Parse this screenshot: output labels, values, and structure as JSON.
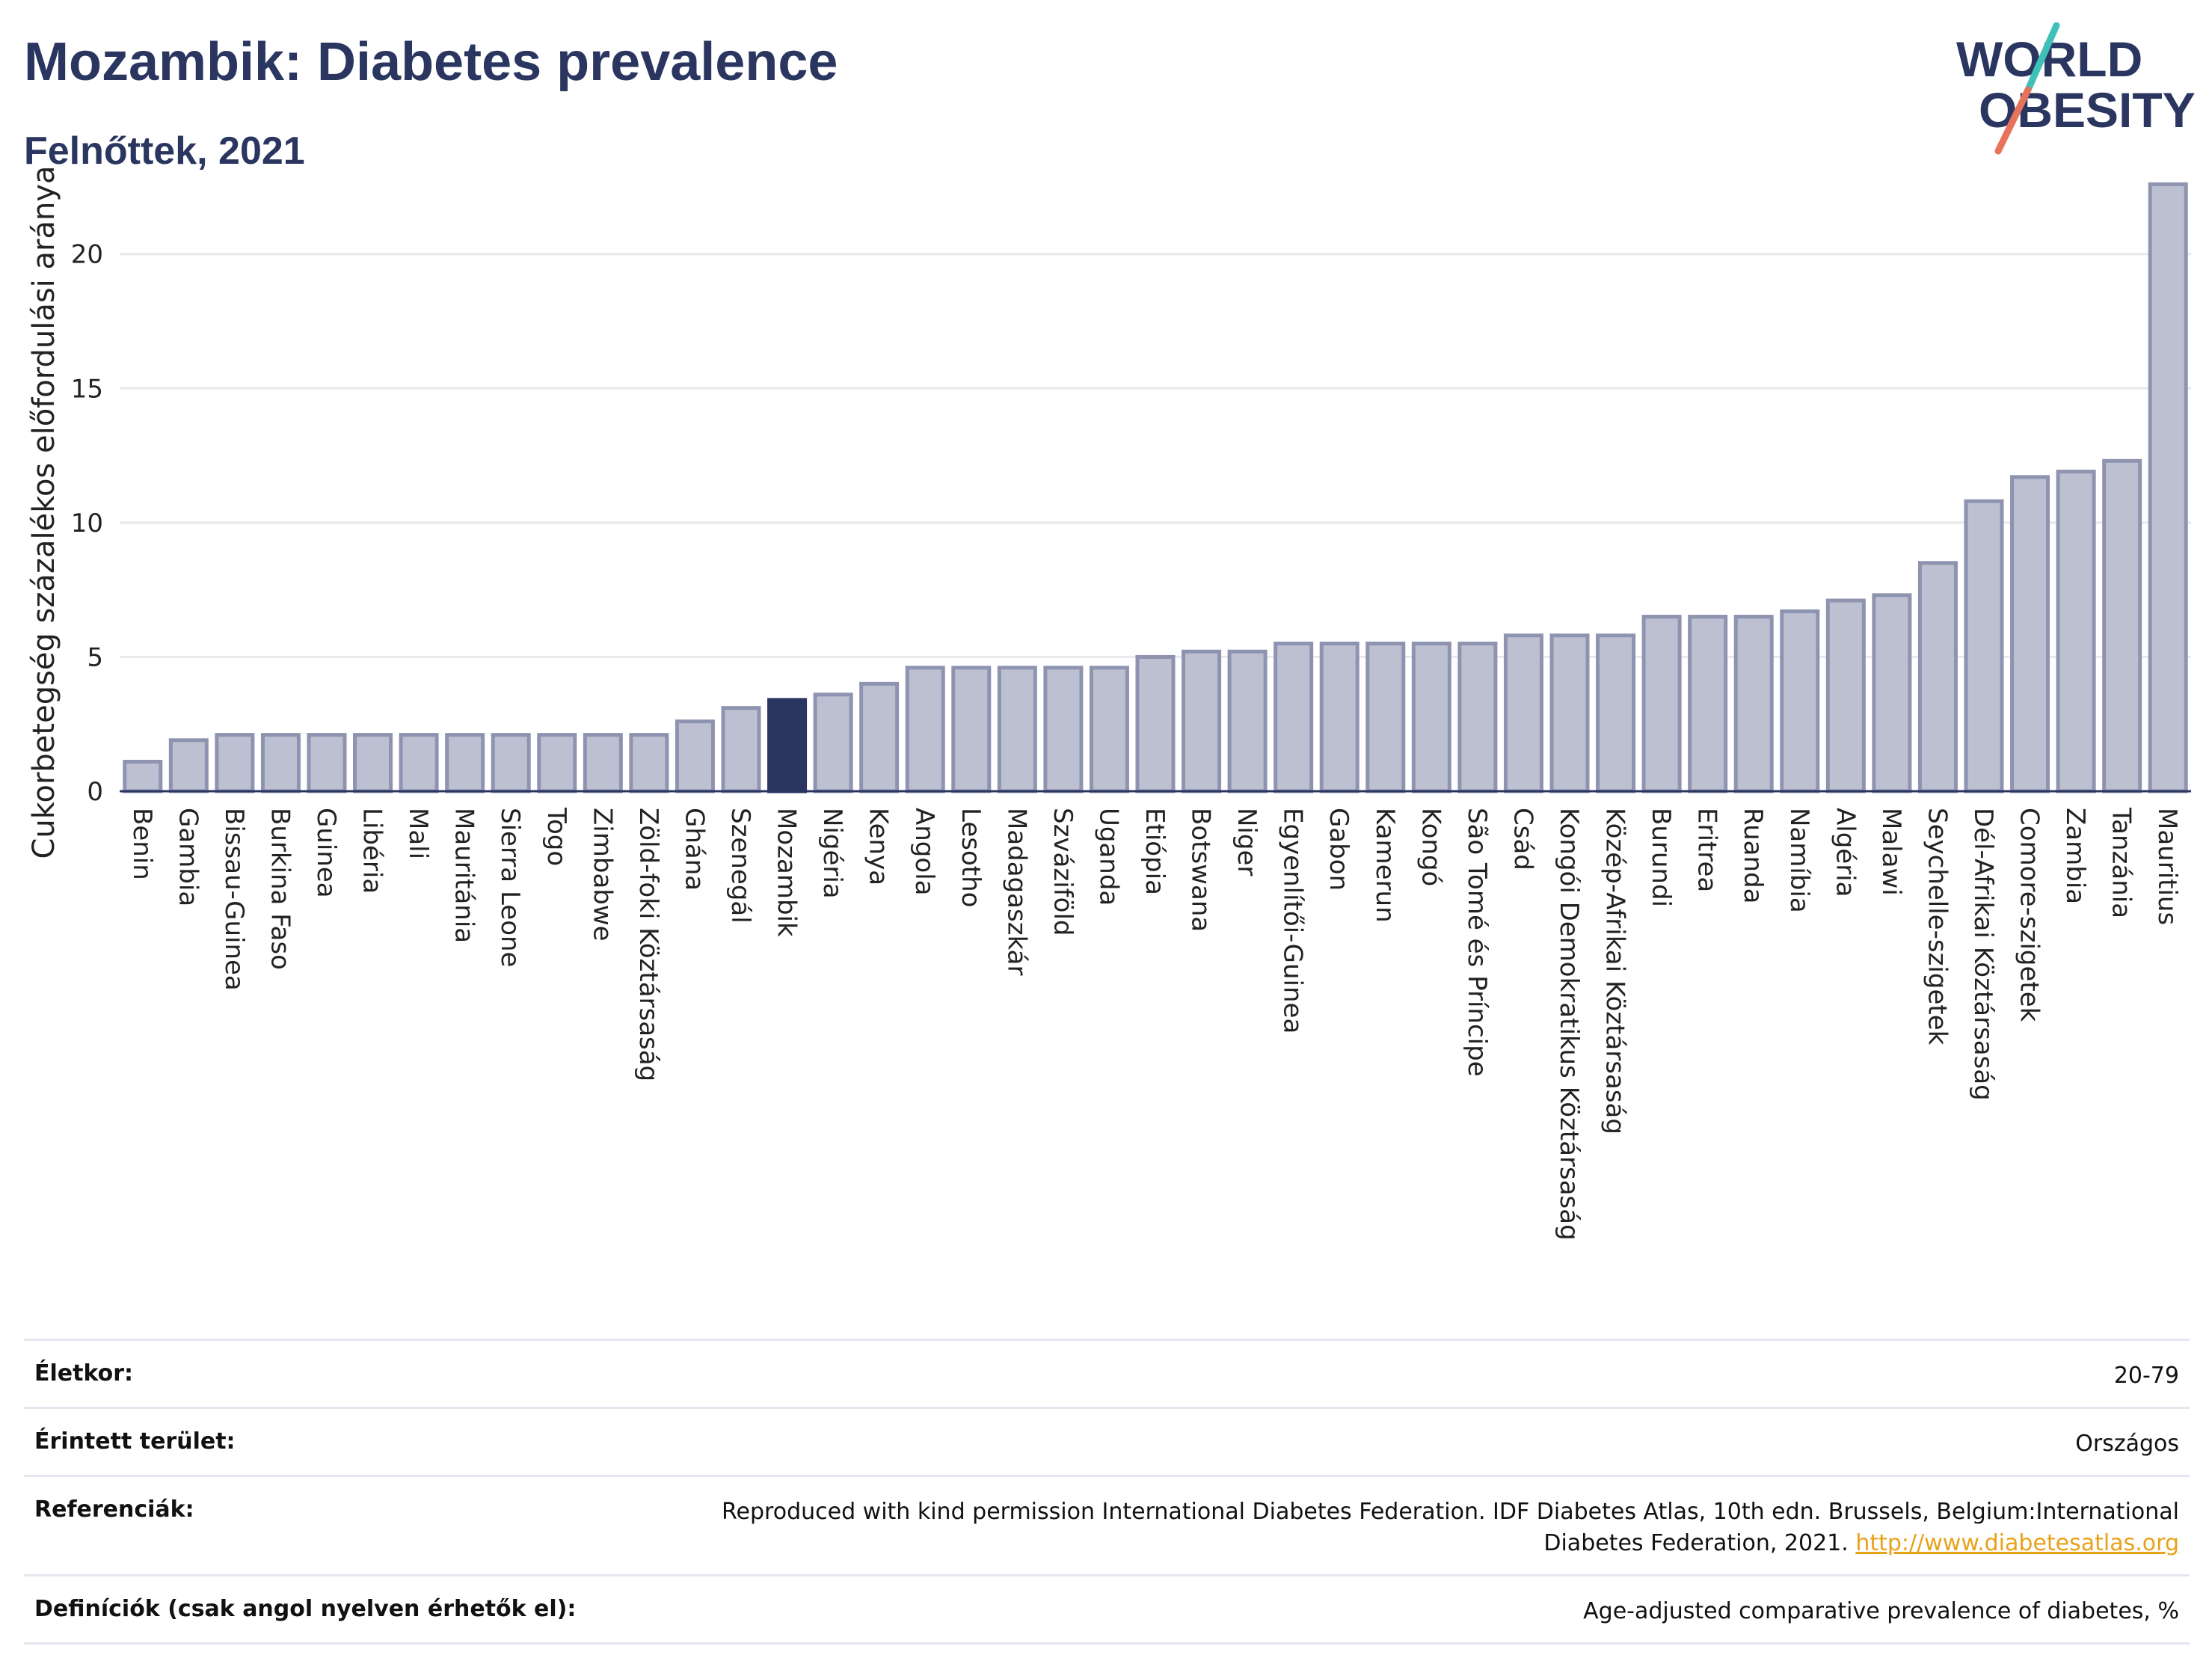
{
  "header": {
    "title": "Mozambik: Diabetes prevalence",
    "subtitle": "Felnőttek, 2021"
  },
  "logo": {
    "line1": "WORLD",
    "line2": "OBESITY"
  },
  "colors": {
    "bar_default": "#bcc0d1",
    "bar_border": "#8e94b0",
    "bar_highlight": "#2a3560",
    "text_dark": "#2a3560",
    "grid": "#e8e8ee",
    "logo_teal": "#3fc1b9",
    "logo_coral": "#e8735d",
    "link": "#e8a21a"
  },
  "chart_data": {
    "type": "bar",
    "ylabel": "Cukorbetegség százalékos előfordulási aránya",
    "xlabel": "",
    "ylim": [
      0,
      23
    ],
    "yticks": [
      0,
      5,
      10,
      15,
      20
    ],
    "grid": true,
    "highlight": "Mozambik",
    "categories": [
      "Benin",
      "Gambia",
      "Bissau-Guinea",
      "Burkina Faso",
      "Guinea",
      "Libéria",
      "Mali",
      "Mauritánia",
      "Sierra Leone",
      "Togo",
      "Zimbabwe",
      "Zöld-foki Köztársaság",
      "Ghána",
      "Szenegál",
      "Mozambik",
      "Nigéria",
      "Kenya",
      "Angola",
      "Lesotho",
      "Madagaszkár",
      "Szváziföld",
      "Uganda",
      "Etiópia",
      "Botswana",
      "Niger",
      "Egyenlítői-Guinea",
      "Gabon",
      "Kamerun",
      "Kongó",
      "São Tomé és Príncipe",
      "Csád",
      "Kongói Demokratikus Köztársaság",
      "Közép-Afrikai Köztársaság",
      "Burundi",
      "Eritrea",
      "Ruanda",
      "Namíbia",
      "Algéria",
      "Malawi",
      "Seychelle-szigetek",
      "Dél-Afrikai Köztársaság",
      "Comore-szigetek",
      "Zambia",
      "Tanzánia",
      "Mauritius"
    ],
    "values": [
      1.1,
      1.9,
      2.1,
      2.1,
      2.1,
      2.1,
      2.1,
      2.1,
      2.1,
      2.1,
      2.1,
      2.1,
      2.6,
      3.1,
      3.4,
      3.6,
      4.0,
      4.6,
      4.6,
      4.6,
      4.6,
      4.6,
      5.0,
      5.2,
      5.2,
      5.5,
      5.5,
      5.5,
      5.5,
      5.5,
      5.8,
      5.8,
      5.8,
      6.5,
      6.5,
      6.5,
      6.7,
      7.1,
      7.3,
      8.5,
      10.8,
      11.7,
      11.9,
      12.3,
      22.6
    ]
  },
  "info": [
    {
      "label": "Életkor:",
      "value": "20-79"
    },
    {
      "label": "Érintett terület:",
      "value": "Országos"
    },
    {
      "label": "Referenciák:",
      "value": "Reproduced with kind permission International Diabetes Federation.  IDF Diabetes Atlas, 10th edn. Brussels, Belgium:International Diabetes Federation, 2021.",
      "link": "http://www.diabetesatlas.org"
    },
    {
      "label": "Definíciók (csak angol nyelven érhetők el):",
      "value": "Age-adjusted comparative prevalence of diabetes, %"
    }
  ]
}
